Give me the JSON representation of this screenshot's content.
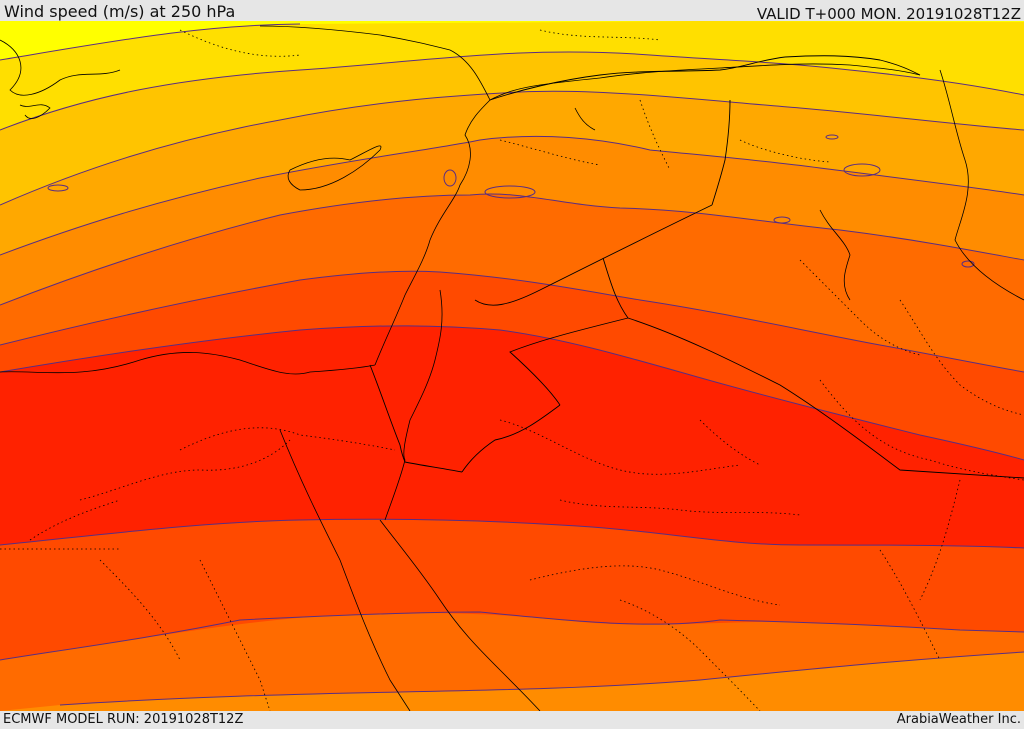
{
  "header": {
    "title": "Wind speed (m/s) at 250 hPa",
    "valid": "VALID T+000 MON. 20191028T12Z"
  },
  "footer": {
    "model_run": "ECMWF MODEL RUN: 20191028T12Z",
    "credit": "ArabiaWeather Inc."
  },
  "map": {
    "field": "wind speed 250 hPa",
    "color_bands": [
      "#ffff00",
      "#ffdf00",
      "#ffc400",
      "#ffa800",
      "#ff8c00",
      "#ff6b00",
      "#ff4a00",
      "#ff2200"
    ],
    "contour_color": "#5a2d82",
    "coastline_color": "#000000",
    "boundary_style": "dotted"
  }
}
